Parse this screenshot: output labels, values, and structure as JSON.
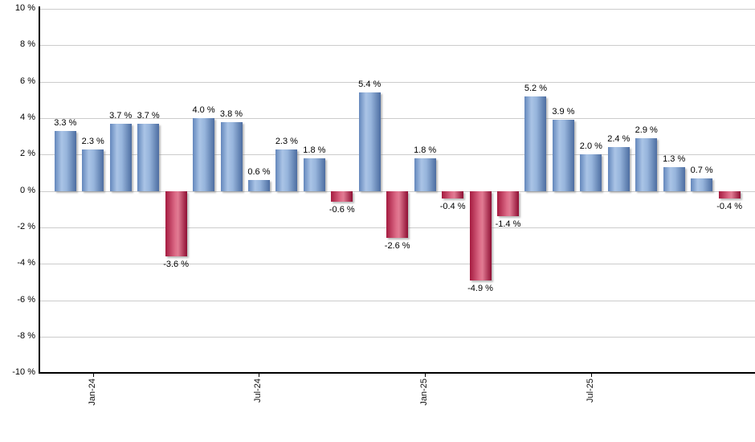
{
  "chart_data": {
    "type": "bar",
    "title": "",
    "xlabel": "",
    "ylabel": "",
    "unit": "%",
    "ylim": [
      -10,
      10
    ],
    "y_tick_step": 2,
    "grid": true,
    "legend": null,
    "y_ticks": [
      {
        "value": 10,
        "label": "10 %"
      },
      {
        "value": 8,
        "label": "8 %"
      },
      {
        "value": 6,
        "label": "6 %"
      },
      {
        "value": 4,
        "label": "4 %"
      },
      {
        "value": 2,
        "label": "2 %"
      },
      {
        "value": 0,
        "label": "0 %"
      },
      {
        "value": -2,
        "label": "-2 %"
      },
      {
        "value": -4,
        "label": "-4 %"
      },
      {
        "value": -6,
        "label": "-6 %"
      },
      {
        "value": -8,
        "label": "-8 %"
      },
      {
        "value": -10,
        "label": "-10 %"
      }
    ],
    "x_ticks": [
      {
        "label": "Jan-24",
        "bar_index": 1
      },
      {
        "label": "Jul-24",
        "bar_index": 7
      },
      {
        "label": "Jan-25",
        "bar_index": 13
      },
      {
        "label": "Jul-25",
        "bar_index": 19
      }
    ],
    "values": [
      3.3,
      2.3,
      3.7,
      3.7,
      -3.6,
      4.0,
      3.8,
      0.6,
      2.3,
      1.8,
      -0.6,
      5.4,
      -2.6,
      1.8,
      -0.4,
      -4.9,
      -1.4,
      5.2,
      3.9,
      2.0,
      2.4,
      2.9,
      1.3,
      0.7,
      -0.4
    ],
    "bar_labels": [
      "3.3 %",
      "2.3 %",
      "3.7 %",
      "3.7 %",
      "-3.6 %",
      "4.0 %",
      "3.8 %",
      "0.6 %",
      "2.3 %",
      "1.8 %",
      "-0.6 %",
      "5.4 %",
      "-2.6 %",
      "1.8 %",
      "-0.4 %",
      "-4.9 %",
      "-1.4 %",
      "5.2 %",
      "3.9 %",
      "2.0 %",
      "2.4 %",
      "2.9 %",
      "1.3 %",
      "0.7 %",
      "-0.4 %"
    ],
    "colors": {
      "positive_bar": "#7a9ccc",
      "negative_bar": "#c23b5f",
      "gridline": "#cccccc",
      "axis_line": "#000000",
      "label_text": "#000000"
    }
  }
}
